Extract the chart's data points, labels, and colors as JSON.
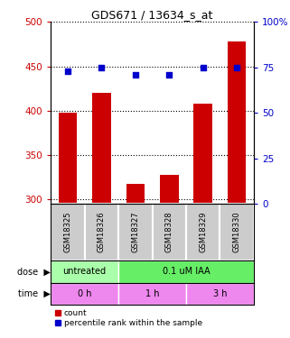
{
  "title": "GDS671 / 13634_s_at",
  "samples": [
    "GSM18325",
    "GSM18326",
    "GSM18327",
    "GSM18328",
    "GSM18329",
    "GSM18330"
  ],
  "counts": [
    398,
    420,
    318,
    328,
    408,
    478
  ],
  "percentiles": [
    73,
    75,
    71,
    71,
    75,
    75
  ],
  "ylim_left": [
    295,
    500
  ],
  "ylim_right": [
    0,
    100
  ],
  "yticks_left": [
    300,
    350,
    400,
    450,
    500
  ],
  "yticks_right": [
    0,
    25,
    50,
    75,
    100
  ],
  "bar_color": "#cc0000",
  "dot_color": "#0000cc",
  "dose_labels": [
    {
      "text": "untreated",
      "start": 0,
      "end": 2,
      "color": "#aaffaa"
    },
    {
      "text": "0.1 uM IAA",
      "start": 2,
      "end": 6,
      "color": "#66ee66"
    }
  ],
  "time_labels": [
    {
      "text": "0 h",
      "start": 0,
      "end": 2,
      "color": "#ee88ee"
    },
    {
      "text": "1 h",
      "start": 2,
      "end": 4,
      "color": "#ee88ee"
    },
    {
      "text": "3 h",
      "start": 4,
      "end": 6,
      "color": "#ee88ee"
    }
  ],
  "legend_count_label": "count",
  "legend_pct_label": "percentile rank within the sample",
  "bar_width": 0.55,
  "gsm_bg_color": "#cccccc",
  "gsm_border_color": "#ffffff"
}
